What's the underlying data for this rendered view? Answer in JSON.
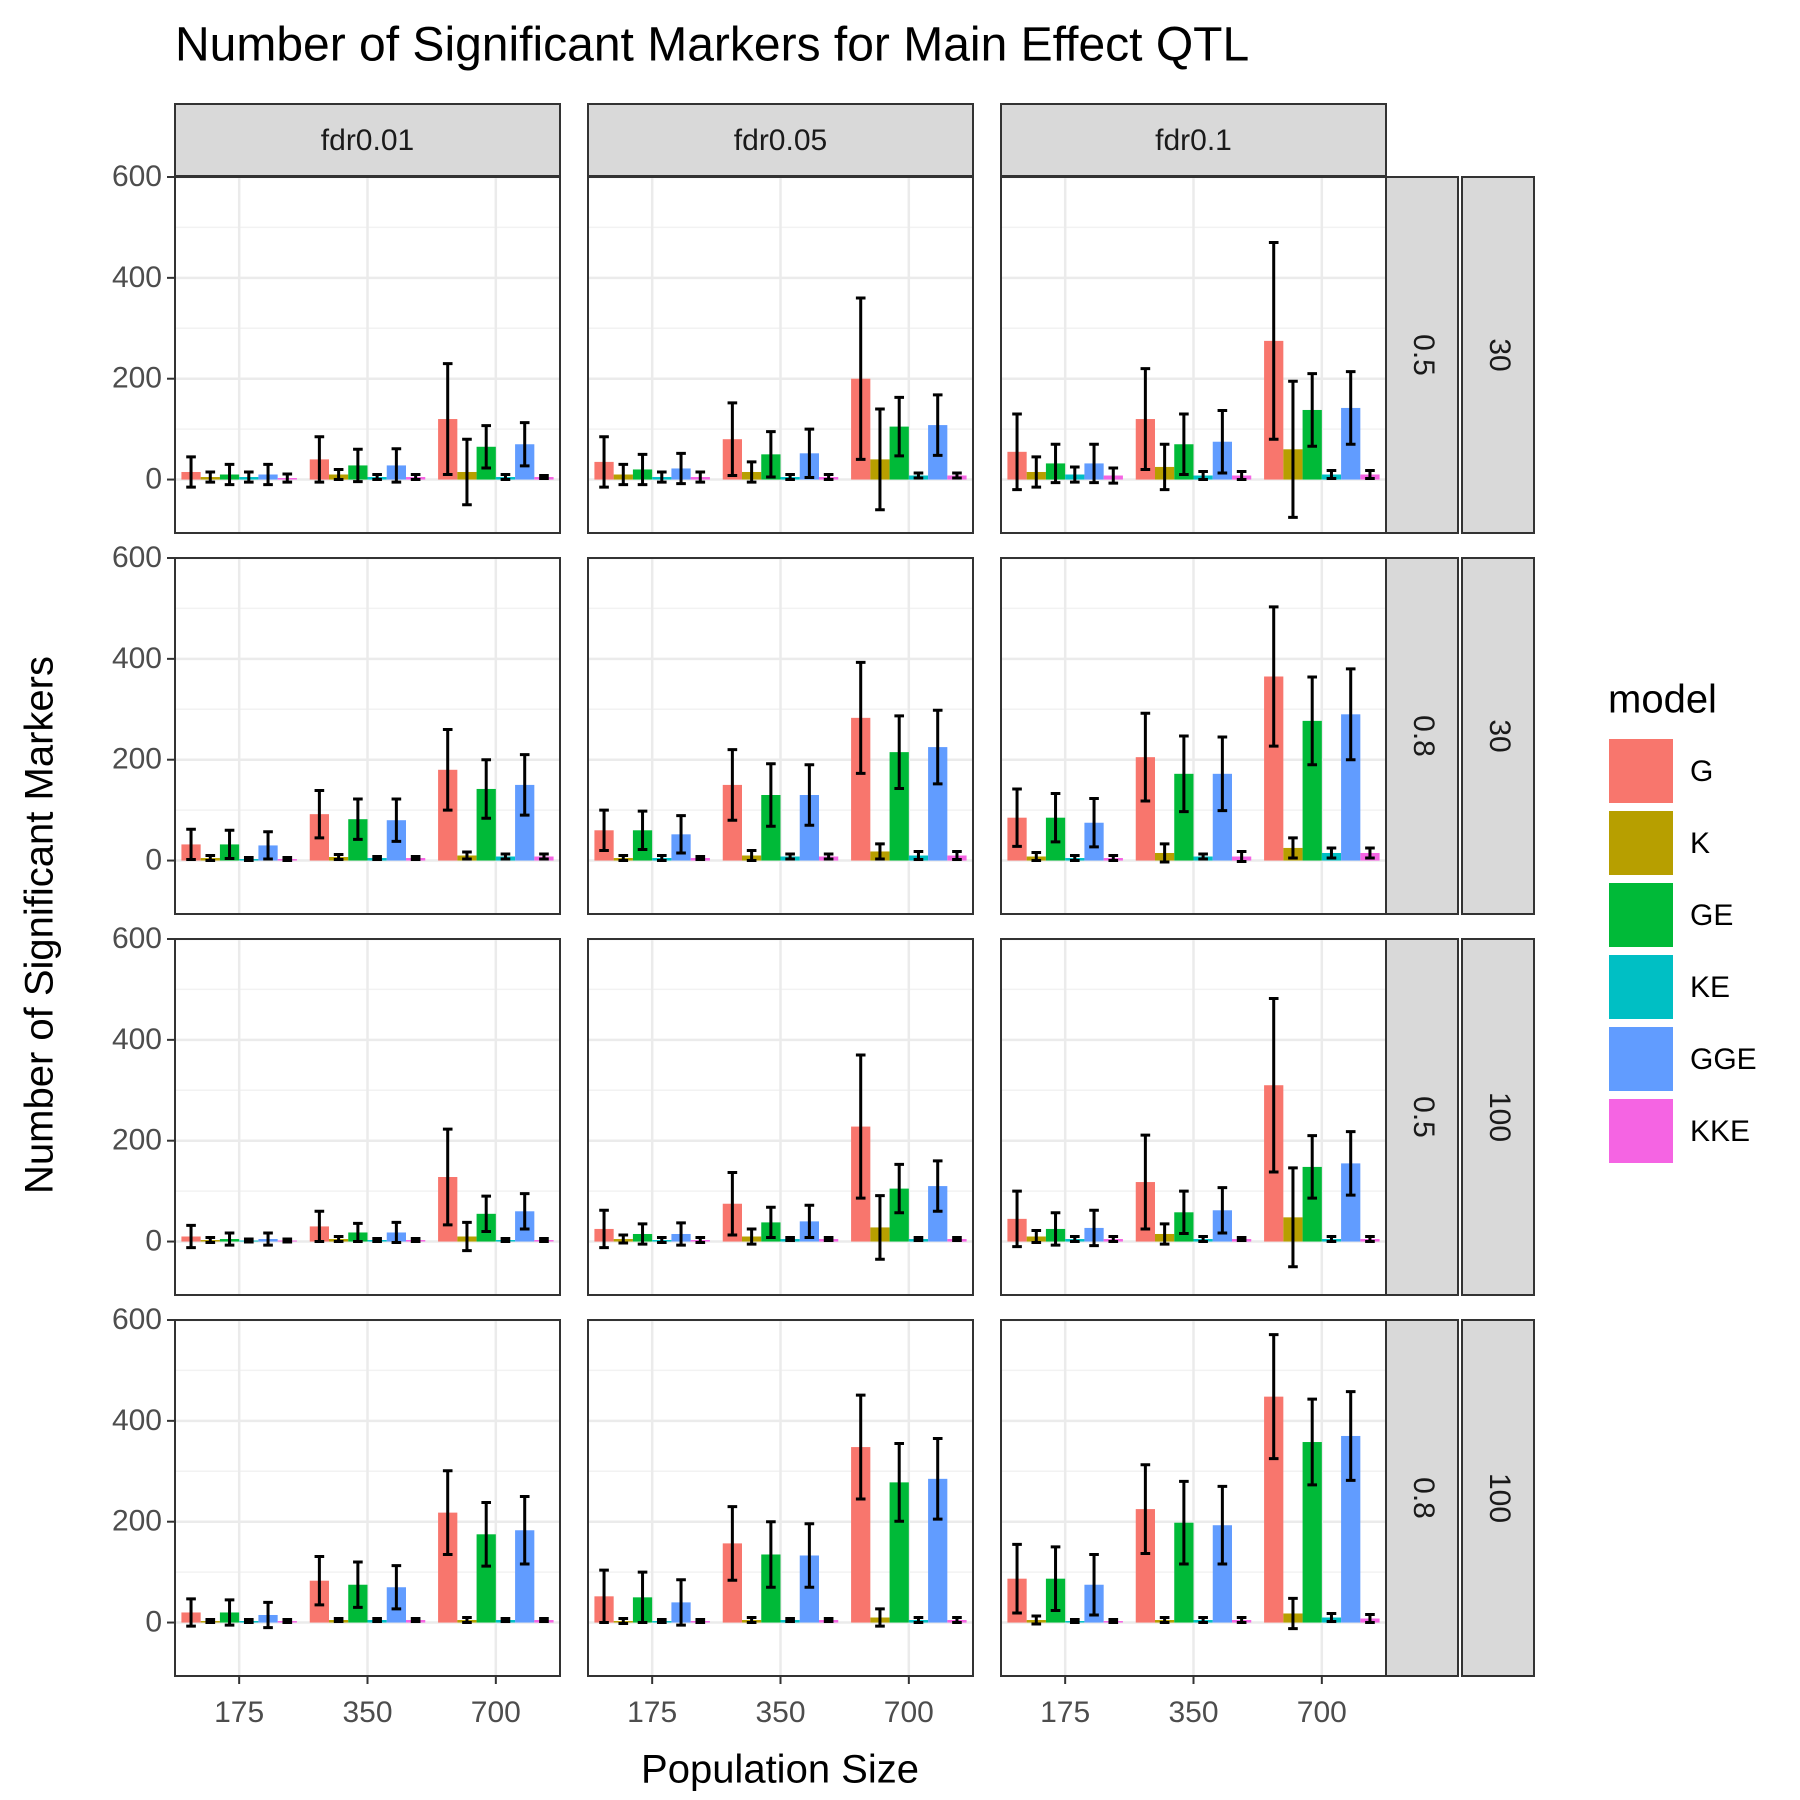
{
  "chart_data": {
    "type": "bar",
    "title": "Number of Significant Markers for Main Effect QTL",
    "xlabel": "Population Size",
    "ylabel": "Number of Significant Markers",
    "legend_title": "model",
    "categories": [
      "175",
      "350",
      "700"
    ],
    "ylim": [
      -106,
      600
    ],
    "yticks": [
      0,
      200,
      400,
      600
    ],
    "yminor": [
      100,
      300,
      500
    ],
    "grid": true,
    "series": [
      {
        "name": "G",
        "color": "#F8766D"
      },
      {
        "name": "K",
        "color": "#B79F00"
      },
      {
        "name": "GE",
        "color": "#00BA38"
      },
      {
        "name": "KE",
        "color": "#00BFC4"
      },
      {
        "name": "GGE",
        "color": "#619CFF"
      },
      {
        "name": "KKE",
        "color": "#F564E3"
      }
    ],
    "columns": [
      "fdr0.01",
      "fdr0.05",
      "fdr0.1"
    ],
    "rows": [
      [
        "0.5",
        "30"
      ],
      [
        "0.8",
        "30"
      ],
      [
        "0.5",
        "100"
      ],
      [
        "0.8",
        "100"
      ]
    ],
    "panels": [
      {
        "series": [
          {
            "values": [
              15,
              40,
              120
            ],
            "errors": [
              30,
              45,
              110
            ]
          },
          {
            "values": [
              5,
              10,
              15
            ],
            "errors": [
              10,
              10,
              65
            ]
          },
          {
            "values": [
              10,
              28,
              65
            ],
            "errors": [
              20,
              32,
              42
            ]
          },
          {
            "values": [
              5,
              5,
              5
            ],
            "errors": [
              10,
              5,
              5
            ]
          },
          {
            "values": [
              10,
              28,
              70
            ],
            "errors": [
              20,
              33,
              43
            ]
          },
          {
            "values": [
              3,
              5,
              5
            ],
            "errors": [
              8,
              5,
              3
            ]
          }
        ]
      },
      {
        "series": [
          {
            "values": [
              35,
              80,
              200
            ],
            "errors": [
              50,
              72,
              160
            ]
          },
          {
            "values": [
              10,
              15,
              40
            ],
            "errors": [
              20,
              20,
              100
            ]
          },
          {
            "values": [
              20,
              50,
              105
            ],
            "errors": [
              30,
              45,
              58
            ]
          },
          {
            "values": [
              5,
              5,
              8
            ],
            "errors": [
              10,
              5,
              5
            ]
          },
          {
            "values": [
              22,
              52,
              108
            ],
            "errors": [
              30,
              48,
              60
            ]
          },
          {
            "values": [
              5,
              5,
              8
            ],
            "errors": [
              10,
              5,
              5
            ]
          }
        ]
      },
      {
        "series": [
          {
            "values": [
              55,
              120,
              275
            ],
            "errors": [
              75,
              100,
              195
            ]
          },
          {
            "values": [
              15,
              25,
              60
            ],
            "errors": [
              30,
              45,
              135
            ]
          },
          {
            "values": [
              32,
              70,
              138
            ],
            "errors": [
              38,
              60,
              72
            ]
          },
          {
            "values": [
              10,
              8,
              10
            ],
            "errors": [
              15,
              8,
              8
            ]
          },
          {
            "values": [
              32,
              75,
              142
            ],
            "errors": [
              38,
              62,
              72
            ]
          },
          {
            "values": [
              8,
              8,
              10
            ],
            "errors": [
              15,
              8,
              8
            ]
          }
        ]
      },
      {
        "series": [
          {
            "values": [
              32,
              92,
              180
            ],
            "errors": [
              30,
              47,
              80
            ]
          },
          {
            "values": [
              5,
              7,
              10
            ],
            "errors": [
              5,
              5,
              7
            ]
          },
          {
            "values": [
              32,
              82,
              142
            ],
            "errors": [
              28,
              40,
              58
            ]
          },
          {
            "values": [
              3,
              5,
              8
            ],
            "errors": [
              3,
              3,
              5
            ]
          },
          {
            "values": [
              30,
              80,
              150
            ],
            "errors": [
              27,
              42,
              60
            ]
          },
          {
            "values": [
              3,
              5,
              8
            ],
            "errors": [
              3,
              3,
              5
            ]
          }
        ]
      },
      {
        "series": [
          {
            "values": [
              60,
              150,
              283
            ],
            "errors": [
              40,
              70,
              110
            ]
          },
          {
            "values": [
              5,
              10,
              18
            ],
            "errors": [
              5,
              10,
              15
            ]
          },
          {
            "values": [
              60,
              130,
              215
            ],
            "errors": [
              38,
              62,
              72
            ]
          },
          {
            "values": [
              5,
              8,
              10
            ],
            "errors": [
              5,
              5,
              8
            ]
          },
          {
            "values": [
              52,
              130,
              225
            ],
            "errors": [
              37,
              60,
              73
            ]
          },
          {
            "values": [
              5,
              8,
              10
            ],
            "errors": [
              3,
              5,
              8
            ]
          }
        ]
      },
      {
        "series": [
          {
            "values": [
              85,
              205,
              365
            ],
            "errors": [
              57,
              87,
              138
            ]
          },
          {
            "values": [
              8,
              15,
              25
            ],
            "errors": [
              8,
              18,
              20
            ]
          },
          {
            "values": [
              85,
              172,
              277
            ],
            "errors": [
              48,
              75,
              87
            ]
          },
          {
            "values": [
              5,
              8,
              15
            ],
            "errors": [
              5,
              5,
              10
            ]
          },
          {
            "values": [
              75,
              172,
              290
            ],
            "errors": [
              48,
              73,
              90
            ]
          },
          {
            "values": [
              5,
              8,
              15
            ],
            "errors": [
              5,
              10,
              10
            ]
          }
        ]
      },
      {
        "series": [
          {
            "values": [
              10,
              30,
              128
            ],
            "errors": [
              22,
              30,
              95
            ]
          },
          {
            "values": [
              3,
              5,
              10
            ],
            "errors": [
              5,
              5,
              28
            ]
          },
          {
            "values": [
              5,
              18,
              55
            ],
            "errors": [
              12,
              18,
              35
            ]
          },
          {
            "values": [
              2,
              3,
              3
            ],
            "errors": [
              3,
              3,
              3
            ]
          },
          {
            "values": [
              5,
              18,
              60
            ],
            "errors": [
              12,
              20,
              35
            ]
          },
          {
            "values": [
              2,
              3,
              3
            ],
            "errors": [
              3,
              3,
              3
            ]
          }
        ]
      },
      {
        "series": [
          {
            "values": [
              25,
              75,
              228
            ],
            "errors": [
              37,
              62,
              142
            ]
          },
          {
            "values": [
              5,
              10,
              28
            ],
            "errors": [
              8,
              15,
              63
            ]
          },
          {
            "values": [
              15,
              38,
              105
            ],
            "errors": [
              20,
              30,
              48
            ]
          },
          {
            "values": [
              3,
              5,
              5
            ],
            "errors": [
              5,
              3,
              3
            ]
          },
          {
            "values": [
              15,
              40,
              110
            ],
            "errors": [
              22,
              32,
              50
            ]
          },
          {
            "values": [
              3,
              5,
              5
            ],
            "errors": [
              5,
              3,
              3
            ]
          }
        ]
      },
      {
        "series": [
          {
            "values": [
              45,
              118,
              310
            ],
            "errors": [
              55,
              93,
              172
            ]
          },
          {
            "values": [
              10,
              15,
              48
            ],
            "errors": [
              12,
              20,
              98
            ]
          },
          {
            "values": [
              25,
              58,
              148
            ],
            "errors": [
              32,
              42,
              62
            ]
          },
          {
            "values": [
              5,
              5,
              5
            ],
            "errors": [
              5,
              5,
              5
            ]
          },
          {
            "values": [
              27,
              62,
              155
            ],
            "errors": [
              35,
              45,
              63
            ]
          },
          {
            "values": [
              5,
              5,
              5
            ],
            "errors": [
              5,
              3,
              5
            ]
          }
        ]
      },
      {
        "series": [
          {
            "values": [
              20,
              83,
              218
            ],
            "errors": [
              27,
              48,
              83
            ]
          },
          {
            "values": [
              3,
              5,
              5
            ],
            "errors": [
              3,
              3,
              5
            ]
          },
          {
            "values": [
              20,
              75,
              175
            ],
            "errors": [
              25,
              45,
              63
            ]
          },
          {
            "values": [
              3,
              5,
              5
            ],
            "errors": [
              3,
              3,
              3
            ]
          },
          {
            "values": [
              15,
              70,
              183
            ],
            "errors": [
              25,
              43,
              67
            ]
          },
          {
            "values": [
              3,
              5,
              5
            ],
            "errors": [
              3,
              3,
              3
            ]
          }
        ]
      },
      {
        "series": [
          {
            "values": [
              52,
              157,
              348
            ],
            "errors": [
              52,
              73,
              103
            ]
          },
          {
            "values": [
              3,
              5,
              10
            ],
            "errors": [
              5,
              5,
              17
            ]
          },
          {
            "values": [
              50,
              135,
              278
            ],
            "errors": [
              50,
              65,
              77
            ]
          },
          {
            "values": [
              3,
              5,
              5
            ],
            "errors": [
              3,
              3,
              5
            ]
          },
          {
            "values": [
              40,
              133,
              285
            ],
            "errors": [
              45,
              63,
              80
            ]
          },
          {
            "values": [
              3,
              5,
              5
            ],
            "errors": [
              3,
              3,
              5
            ]
          }
        ]
      },
      {
        "series": [
          {
            "values": [
              87,
              225,
              448
            ],
            "errors": [
              68,
              88,
              123
            ]
          },
          {
            "values": [
              5,
              5,
              18
            ],
            "errors": [
              8,
              5,
              30
            ]
          },
          {
            "values": [
              87,
              198,
              358
            ],
            "errors": [
              63,
              82,
              85
            ]
          },
          {
            "values": [
              3,
              5,
              10
            ],
            "errors": [
              3,
              5,
              8
            ]
          },
          {
            "values": [
              75,
              193,
              370
            ],
            "errors": [
              60,
              77,
              88
            ]
          },
          {
            "values": [
              3,
              5,
              8
            ],
            "errors": [
              3,
              5,
              8
            ]
          }
        ]
      }
    ]
  }
}
